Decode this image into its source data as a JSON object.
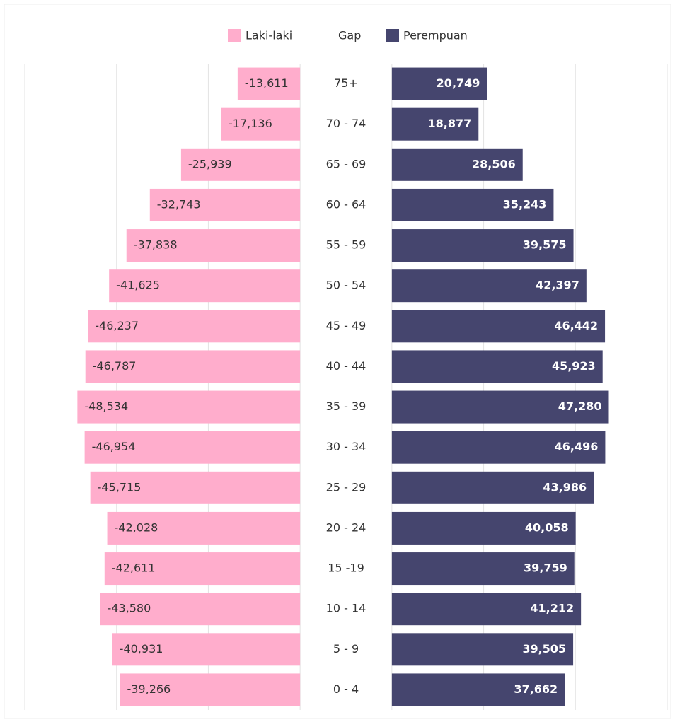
{
  "chart_data": {
    "type": "bar",
    "orientation": "horizontal",
    "stacked": true,
    "categories": [
      "75+",
      "70 - 74",
      "65 - 69",
      "60 - 64",
      "55 - 59",
      "50 - 54",
      "45 - 49",
      "40 - 44",
      "35 - 39",
      "30 - 34",
      "25 - 29",
      "20 - 24",
      "15 -19",
      "10 - 14",
      "5 - 9",
      "0 - 4"
    ],
    "series": [
      {
        "name": "Laki-laki",
        "color": "#ffadcc",
        "values": [
          -13611,
          -17136,
          -25939,
          -32743,
          -37838,
          -41625,
          -46237,
          -46787,
          -48534,
          -46954,
          -45715,
          -42028,
          -42611,
          -43580,
          -40931,
          -39266
        ],
        "value_labels": [
          "-13,611",
          "-17,136",
          "-25,939",
          "-32,743",
          "-37,838",
          "-41,625",
          "-46,237",
          "-46,787",
          "-48,534",
          "-46,954",
          "-45,715",
          "-42,028",
          "-42,611",
          "-43,580",
          "-40,931",
          "-39,266"
        ]
      },
      {
        "name": "Gap",
        "color": "none",
        "values": [
          20000,
          20000,
          20000,
          20000,
          20000,
          20000,
          20000,
          20000,
          20000,
          20000,
          20000,
          20000,
          20000,
          20000,
          20000,
          20000
        ]
      },
      {
        "name": "Perempuan",
        "color": "#45456e",
        "values": [
          20749,
          18877,
          28506,
          35243,
          39575,
          42397,
          46442,
          45923,
          47280,
          46496,
          43986,
          40058,
          39759,
          41212,
          39505,
          37662
        ],
        "value_labels": [
          "20,749",
          "18,877",
          "28,506",
          "35,243",
          "39,575",
          "42,397",
          "46,442",
          "45,923",
          "47,280",
          "46,496",
          "43,986",
          "40,058",
          "39,759",
          "41,212",
          "39,505",
          "37,662"
        ]
      }
    ],
    "xlim": [
      -60000,
      80000
    ],
    "xticks": [
      -60000,
      -40000,
      -20000,
      0,
      20000,
      40000,
      60000,
      80000
    ],
    "grid": true,
    "legend": "top"
  }
}
